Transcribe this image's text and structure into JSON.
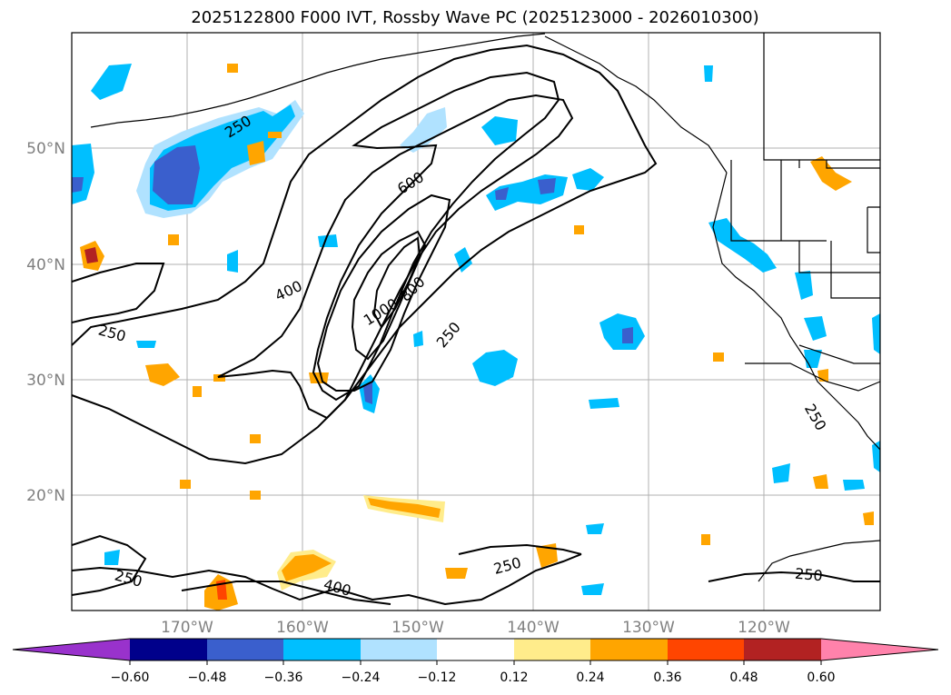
{
  "title": "2025122800 F000 IVT, Rossby Wave PC (2025123000 - 2026010300)",
  "lat_labels": [
    "50°N",
    "40°N",
    "30°N",
    "20°N"
  ],
  "lon_labels": [
    "170°W",
    "160°W",
    "150°W",
    "140°W",
    "130°W",
    "120°W"
  ],
  "contour_labels": {
    "c250_nw": "250",
    "c600": "600",
    "c400_mid": "400",
    "c1000": "1000",
    "c800": "800",
    "c250_mid": "250",
    "c250_west": "250",
    "c250_coast": "250",
    "c250_sw": "250",
    "c400_south": "400",
    "c250_south": "250",
    "c250_se": "250"
  },
  "colorbar": {
    "ticks": [
      "−0.60",
      "−0.48",
      "−0.36",
      "−0.24",
      "−0.12",
      "0.12",
      "0.24",
      "0.36",
      "0.48",
      "0.60"
    ],
    "colors": [
      "#9932cc",
      "#00008b",
      "#3a5fcd",
      "#00bfff",
      "#b0e2ff",
      "#ffffff",
      "#ffec8b",
      "#ffa500",
      "#ff4500",
      "#b22222",
      "#ff82ab"
    ]
  }
}
